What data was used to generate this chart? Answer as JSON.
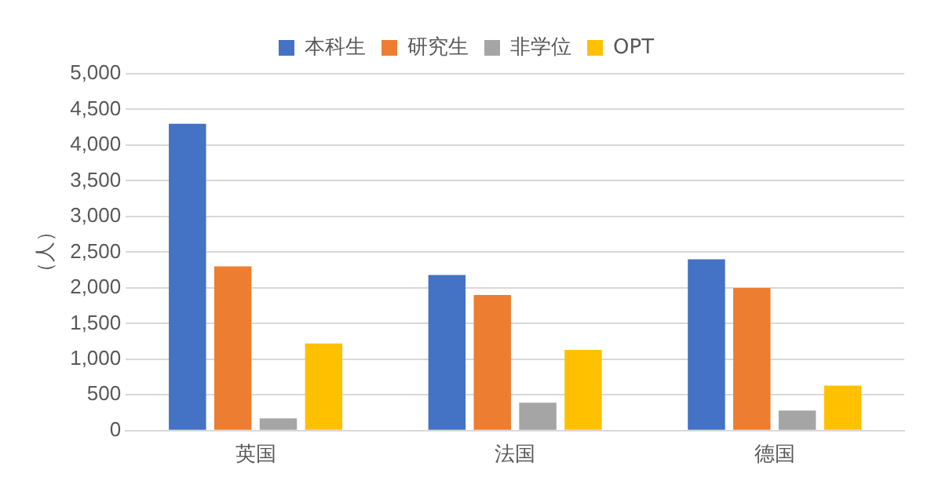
{
  "chart_data": {
    "type": "bar",
    "ylabel": "（人）",
    "categories": [
      "英国",
      "法国",
      "德国"
    ],
    "series": [
      {
        "name": "本科生",
        "color": "#4472c4",
        "values": [
          4300,
          2180,
          2400
        ]
      },
      {
        "name": "研究生",
        "color": "#ed7d31",
        "values": [
          2300,
          1900,
          2000
        ]
      },
      {
        "name": "非学位",
        "color": "#a5a5a5",
        "values": [
          170,
          390,
          280
        ]
      },
      {
        "name": "OPT",
        "color": "#ffc000",
        "values": [
          1220,
          1130,
          630
        ]
      }
    ],
    "ylim": [
      0,
      5000
    ],
    "yticks": [
      {
        "value": 0,
        "label": "0"
      },
      {
        "value": 500,
        "label": "500"
      },
      {
        "value": 1000,
        "label": "1,000"
      },
      {
        "value": 1500,
        "label": "1,500"
      },
      {
        "value": 2000,
        "label": "2,000"
      },
      {
        "value": 2500,
        "label": "2,500"
      },
      {
        "value": 3000,
        "label": "3,000"
      },
      {
        "value": 3500,
        "label": "3,500"
      },
      {
        "value": 4000,
        "label": "4,000"
      },
      {
        "value": 4500,
        "label": "4,500"
      },
      {
        "value": 5000,
        "label": "5,000"
      }
    ],
    "grid": "y",
    "legend": "top"
  }
}
